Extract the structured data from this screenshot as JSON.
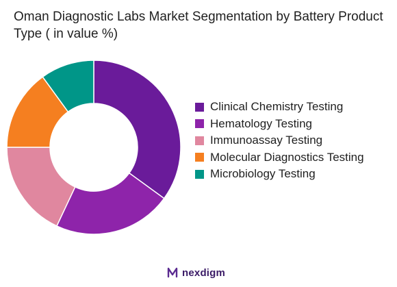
{
  "chart_data": {
    "type": "pie",
    "variant": "donut",
    "title": "Oman Diagnostic Labs Market Segmentation by Battery Product Type ( in value %)",
    "categories": [
      "Clinical Chemistry Testing",
      "Hematology Testing",
      "Immunoassay Testing",
      "Molecular Diagnostics Testing",
      "Microbiology Testing"
    ],
    "values": [
      35,
      22,
      18,
      15,
      10
    ],
    "colors": [
      "#6a1b9a",
      "#8e24aa",
      "#e0879f",
      "#f57f20",
      "#009688"
    ],
    "legend_placement": "right"
  },
  "branding": {
    "logo_text": "nexdigm",
    "logo_icon": "nexdigm-n-icon",
    "logo_color": "#3a1a66"
  }
}
